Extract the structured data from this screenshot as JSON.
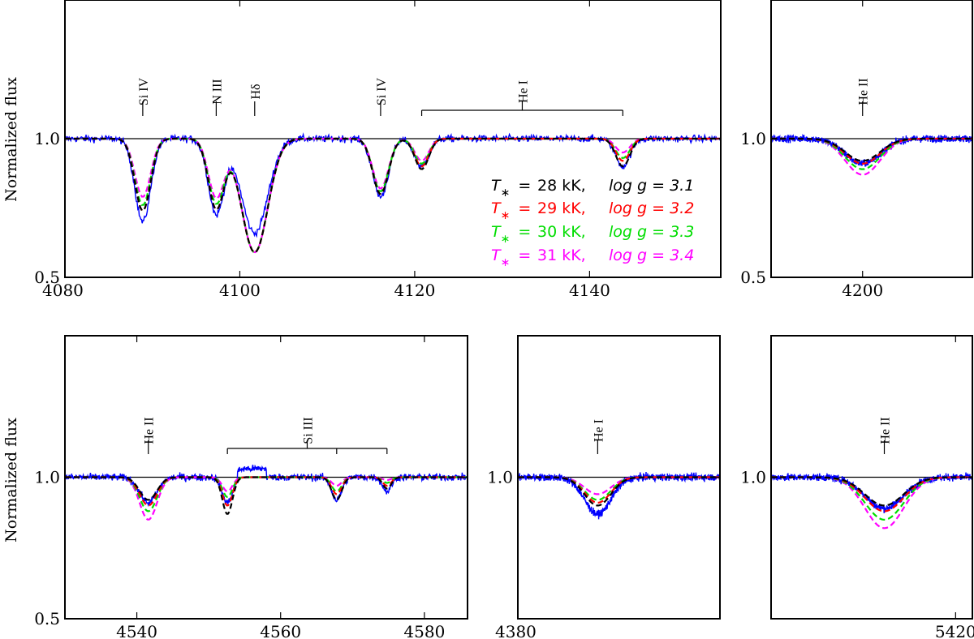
{
  "chart_data": [
    {
      "id": "p1",
      "type": "line",
      "xlim": [
        4080,
        4155
      ],
      "ylim": [
        0.5,
        1.5
      ],
      "xticks": [
        4080,
        4100,
        4120,
        4140
      ],
      "yticks": [
        0.5,
        1.0
      ],
      "ylabel": "Normalized flux",
      "lines": [
        {
          "label": "Si IV",
          "x": [
            4088.9
          ]
        },
        {
          "label": "N III",
          "x": [
            4097.3
          ]
        },
        {
          "label": "Hδ",
          "x": [
            4101.7
          ]
        },
        {
          "label": "Si IV",
          "x": [
            4116.1
          ]
        },
        {
          "label": "He I",
          "x": [
            4120.8,
            4143.8
          ]
        }
      ],
      "features": [
        {
          "c": 4088.9,
          "w": 0.9,
          "d": [
            0.26,
            0.26,
            0.24,
            0.21
          ],
          "o": 0.3
        },
        {
          "c": 4097.3,
          "w": 0.9,
          "d": [
            0.25,
            0.25,
            0.23,
            0.21
          ],
          "o": 0.27
        },
        {
          "c": 4101.7,
          "w": 1.5,
          "d": [
            0.41,
            0.41,
            0.41,
            0.41
          ],
          "o": 0.34
        },
        {
          "c": 4116.1,
          "w": 0.9,
          "d": [
            0.2,
            0.2,
            0.19,
            0.18
          ],
          "o": 0.21
        },
        {
          "c": 4120.8,
          "w": 0.8,
          "d": [
            0.11,
            0.1,
            0.09,
            0.08
          ],
          "o": 0.1
        },
        {
          "c": 4143.8,
          "w": 0.8,
          "d": [
            0.1,
            0.08,
            0.07,
            0.05
          ],
          "o": 0.1
        }
      ],
      "legend": {
        "entries": [
          {
            "t": "28 kK,",
            "g": "log g = 3.1",
            "color": "#000000"
          },
          {
            "t": "29 kK,",
            "g": "log g = 3.2",
            "color": "#ff0000"
          },
          {
            "t": "30 kK,",
            "g": "log g = 3.3",
            "color": "#00dd00"
          },
          {
            "t": "31 kK,",
            "g": "log g = 3.4",
            "color": "#ff00ff"
          }
        ]
      }
    },
    {
      "id": "p2",
      "type": "line",
      "xlim": [
        4190,
        4212
      ],
      "ylim": [
        0.5,
        1.5
      ],
      "xticks": [
        4200
      ],
      "yticks": [
        0.5,
        1.0
      ],
      "lines": [
        {
          "label": "He II",
          "x": [
            4200.0
          ]
        }
      ],
      "features": [
        {
          "c": 4200.0,
          "w": 1.9,
          "d": [
            0.08,
            0.09,
            0.11,
            0.13
          ],
          "o": 0.09
        }
      ]
    },
    {
      "id": "p3",
      "type": "line",
      "xlim": [
        4530,
        4586
      ],
      "ylim": [
        0.5,
        1.5
      ],
      "xticks": [
        4540,
        4560,
        4580
      ],
      "yticks": [
        0.5,
        1.0
      ],
      "ylabel": "Normalized flux",
      "lines": [
        {
          "label": "He II",
          "x": [
            4541.6
          ]
        },
        {
          "label": "Si III",
          "x": [
            4552.6,
            4567.8,
            4574.8
          ]
        }
      ],
      "features": [
        {
          "c": 4541.6,
          "w": 1.2,
          "d": [
            0.08,
            0.1,
            0.12,
            0.15
          ],
          "o": 0.09
        },
        {
          "c": 4552.6,
          "w": 0.7,
          "d": [
            0.13,
            0.1,
            0.07,
            0.05
          ],
          "o": 0.09
        },
        {
          "c": 4567.8,
          "w": 0.7,
          "d": [
            0.08,
            0.06,
            0.05,
            0.03
          ],
          "o": 0.08
        },
        {
          "c": 4574.8,
          "w": 0.6,
          "d": [
            0.04,
            0.03,
            0.02,
            0.01
          ],
          "o": 0.05
        }
      ],
      "bump": {
        "x0": 4554.0,
        "x1": 4558.0,
        "h": 0.03
      }
    },
    {
      "id": "p4",
      "type": "line",
      "xlim": [
        4380,
        4400
      ],
      "ylim": [
        0.5,
        1.5
      ],
      "xticks": [
        4380
      ],
      "yticks": [
        1.0
      ],
      "lines": [
        {
          "label": "He I",
          "x": [
            4387.9
          ]
        }
      ],
      "features": [
        {
          "c": 4387.9,
          "w": 1.3,
          "d": [
            0.1,
            0.09,
            0.08,
            0.06
          ],
          "o": 0.13
        }
      ]
    },
    {
      "id": "p5",
      "type": "line",
      "xlim": [
        5398,
        5422
      ],
      "ylim": [
        0.5,
        1.5
      ],
      "xticks": [
        5420
      ],
      "yticks": [
        1.0
      ],
      "lines": [
        {
          "label": "He II",
          "x": [
            5411.5
          ]
        }
      ],
      "features": [
        {
          "c": 5411.5,
          "w": 2.3,
          "d": [
            0.1,
            0.12,
            0.15,
            0.18
          ],
          "o": 0.11
        }
      ]
    }
  ]
}
